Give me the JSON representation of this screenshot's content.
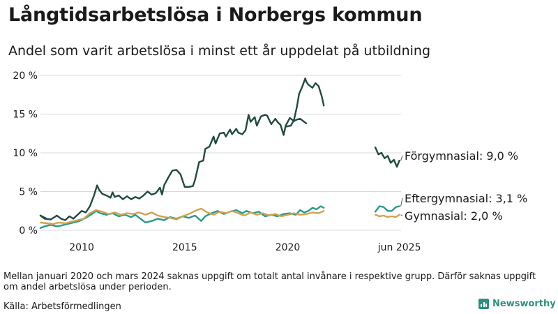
{
  "header": {
    "title": "Långtidsarbetslösa i Norbergs kommun",
    "subtitle": "Andel som varit arbetslösa i minst ett år uppdelat på utbildning"
  },
  "footer": {
    "note": "Mellan januari 2020 och mars 2024 saknas uppgift om totalt antal invånare i respektive grupp. Därför saknas uppgift om andel arbetslösa under perioden.",
    "source": "Källa: Arbetsförmedlingen",
    "brand": "Newsworthy"
  },
  "colors": {
    "forgymnasial": "#1f4a40",
    "eftergymnasial": "#2a9a8a",
    "gymnasial": "#d4a24c",
    "grid": "#d9d9d9"
  },
  "chart_data": {
    "type": "line",
    "title": "Långtidsarbetslösa i Norbergs kommun",
    "subtitle": "Andel som varit arbetslösa i minst ett år uppdelat på utbildning",
    "x_unit": "year",
    "xlim": [
      2008,
      2025.5
    ],
    "ylim": [
      0,
      20
    ],
    "grid": true,
    "x_ticks": [
      {
        "value": 2010,
        "label": "2010"
      },
      {
        "value": 2015,
        "label": "2015"
      },
      {
        "value": 2020,
        "label": "2020"
      },
      {
        "value": 2025.42,
        "label": "jun 2025"
      }
    ],
    "y_ticks": [
      {
        "value": 0,
        "label": "0 %"
      },
      {
        "value": 5,
        "label": "5 %"
      },
      {
        "value": 10,
        "label": "10 %"
      },
      {
        "value": 15,
        "label": "15 %"
      },
      {
        "value": 20,
        "label": "20 %"
      }
    ],
    "series": [
      {
        "name": "Förgymnasial",
        "label": "Förgymnasial: 9,0 %",
        "color": "#1f4a40",
        "segments": [
          [
            [
              2008.0,
              1.9
            ],
            [
              2008.2,
              1.5
            ],
            [
              2008.5,
              1.4
            ],
            [
              2008.8,
              1.9
            ],
            [
              2009.0,
              1.5
            ],
            [
              2009.2,
              1.3
            ],
            [
              2009.4,
              1.8
            ],
            [
              2009.6,
              1.5
            ],
            [
              2009.8,
              2.0
            ],
            [
              2010.0,
              2.5
            ],
            [
              2010.2,
              2.3
            ],
            [
              2010.4,
              3.1
            ],
            [
              2010.6,
              4.5
            ],
            [
              2010.75,
              5.8
            ],
            [
              2010.85,
              5.2
            ],
            [
              2011.0,
              4.7
            ],
            [
              2011.2,
              4.5
            ],
            [
              2011.4,
              4.2
            ],
            [
              2011.5,
              4.9
            ],
            [
              2011.6,
              4.3
            ],
            [
              2011.8,
              4.5
            ],
            [
              2012.0,
              4.0
            ],
            [
              2012.2,
              4.4
            ],
            [
              2012.4,
              4.0
            ],
            [
              2012.6,
              4.3
            ],
            [
              2012.8,
              4.1
            ],
            [
              2013.0,
              4.5
            ],
            [
              2013.2,
              5.0
            ],
            [
              2013.4,
              4.6
            ],
            [
              2013.6,
              4.8
            ],
            [
              2013.8,
              5.5
            ],
            [
              2013.9,
              4.6
            ],
            [
              2014.0,
              5.8
            ],
            [
              2014.2,
              6.8
            ],
            [
              2014.4,
              7.7
            ],
            [
              2014.6,
              7.8
            ],
            [
              2014.8,
              7.2
            ],
            [
              2014.9,
              6.4
            ],
            [
              2015.0,
              5.6
            ],
            [
              2015.2,
              5.6
            ],
            [
              2015.4,
              5.7
            ],
            [
              2015.5,
              6.5
            ],
            [
              2015.7,
              8.8
            ],
            [
              2015.9,
              9.0
            ],
            [
              2016.0,
              10.5
            ],
            [
              2016.2,
              10.8
            ],
            [
              2016.4,
              12.1
            ],
            [
              2016.5,
              11.2
            ],
            [
              2016.7,
              12.5
            ],
            [
              2016.9,
              12.6
            ],
            [
              2017.0,
              12.1
            ],
            [
              2017.2,
              13.0
            ],
            [
              2017.3,
              12.4
            ],
            [
              2017.5,
              13.1
            ],
            [
              2017.6,
              12.6
            ],
            [
              2017.8,
              12.4
            ],
            [
              2017.95,
              12.9
            ],
            [
              2018.1,
              14.9
            ],
            [
              2018.2,
              14.0
            ],
            [
              2018.4,
              14.6
            ],
            [
              2018.5,
              13.5
            ],
            [
              2018.7,
              14.7
            ],
            [
              2018.9,
              14.9
            ],
            [
              2019.0,
              14.8
            ],
            [
              2019.2,
              13.7
            ],
            [
              2019.4,
              14.4
            ],
            [
              2019.5,
              14.0
            ],
            [
              2019.65,
              13.6
            ],
            [
              2019.8,
              12.3
            ],
            [
              2019.9,
              13.5
            ],
            [
              2020.1,
              14.5
            ],
            [
              2020.3,
              14.1
            ],
            [
              2020.45,
              14.3
            ],
            [
              2020.6,
              14.4
            ],
            [
              2020.75,
              14.1
            ],
            [
              2020.9,
              13.8
            ]
          ],
          [
            [
              2008.0,
              1.9
            ],
            [
              2008.3,
              1.5
            ]
          ],
          [
            [
              2019.95,
              13.4
            ],
            [
              2020.15,
              13.5
            ],
            [
              2020.3,
              14.2
            ],
            [
              2020.45,
              16.0
            ],
            [
              2020.55,
              17.6
            ],
            [
              2020.7,
              18.5
            ],
            [
              2020.85,
              19.6
            ],
            [
              2020.9,
              19.2
            ],
            [
              2021.0,
              18.8
            ],
            [
              2021.2,
              18.4
            ],
            [
              2021.35,
              19.0
            ],
            [
              2021.5,
              18.6
            ],
            [
              2021.65,
              17.3
            ],
            [
              2021.75,
              16.1
            ]
          ]
        ],
        "tail": [
          [
            2024.25,
            10.7
          ],
          [
            2024.4,
            9.8
          ],
          [
            2024.55,
            10.0
          ],
          [
            2024.7,
            9.3
          ],
          [
            2024.85,
            9.6
          ],
          [
            2025.0,
            8.7
          ],
          [
            2025.15,
            9.1
          ],
          [
            2025.3,
            8.2
          ],
          [
            2025.42,
            9.0
          ]
        ]
      },
      {
        "name": "Eftergymnasial",
        "label": "Eftergymnasial: 3,1 %",
        "color": "#2a9a8a",
        "segments": [
          [
            [
              2008.0,
              0.3
            ],
            [
              2008.2,
              0.5
            ],
            [
              2008.5,
              0.7
            ],
            [
              2008.8,
              0.5
            ],
            [
              2009.0,
              0.6
            ],
            [
              2009.3,
              0.8
            ],
            [
              2009.6,
              1.0
            ],
            [
              2009.9,
              1.2
            ],
            [
              2010.2,
              1.6
            ],
            [
              2010.5,
              2.1
            ],
            [
              2010.7,
              2.5
            ],
            [
              2010.9,
              2.2
            ],
            [
              2011.2,
              2.0
            ],
            [
              2011.5,
              2.2
            ],
            [
              2011.8,
              1.8
            ],
            [
              2012.1,
              2.0
            ],
            [
              2012.4,
              1.7
            ],
            [
              2012.6,
              2.0
            ],
            [
              2012.9,
              1.4
            ],
            [
              2013.1,
              1.0
            ],
            [
              2013.4,
              1.2
            ],
            [
              2013.7,
              1.5
            ],
            [
              2014.0,
              1.3
            ],
            [
              2014.3,
              1.7
            ],
            [
              2014.6,
              1.5
            ],
            [
              2014.9,
              1.8
            ],
            [
              2015.2,
              1.6
            ],
            [
              2015.5,
              1.9
            ],
            [
              2015.8,
              1.2
            ],
            [
              2016.0,
              1.8
            ],
            [
              2016.3,
              2.2
            ],
            [
              2016.6,
              2.5
            ],
            [
              2016.9,
              2.1
            ],
            [
              2017.2,
              2.4
            ],
            [
              2017.5,
              2.6
            ],
            [
              2017.8,
              2.2
            ],
            [
              2018.0,
              2.5
            ],
            [
              2018.3,
              2.2
            ],
            [
              2018.6,
              2.4
            ],
            [
              2018.9,
              1.8
            ],
            [
              2019.2,
              2.0
            ],
            [
              2019.5,
              1.8
            ],
            [
              2019.8,
              2.1
            ],
            [
              2020.1,
              2.2
            ],
            [
              2020.4,
              2.0
            ],
            [
              2020.6,
              2.6
            ],
            [
              2020.8,
              2.3
            ],
            [
              2021.0,
              2.5
            ],
            [
              2021.2,
              2.9
            ],
            [
              2021.4,
              2.7
            ],
            [
              2021.6,
              3.1
            ],
            [
              2021.75,
              2.9
            ]
          ]
        ],
        "tail": [
          [
            2024.25,
            2.4
          ],
          [
            2024.45,
            3.1
          ],
          [
            2024.65,
            3.0
          ],
          [
            2024.85,
            2.5
          ],
          [
            2025.05,
            2.5
          ],
          [
            2025.25,
            3.0
          ],
          [
            2025.42,
            3.1
          ]
        ]
      },
      {
        "name": "Gymnasial",
        "label": "Gymnasial: 2,0 %",
        "color": "#d4a24c",
        "segments": [
          [
            [
              2008.0,
              1.0
            ],
            [
              2008.3,
              0.9
            ],
            [
              2008.6,
              0.8
            ],
            [
              2008.9,
              1.0
            ],
            [
              2009.2,
              0.9
            ],
            [
              2009.5,
              1.1
            ],
            [
              2009.8,
              1.3
            ],
            [
              2010.1,
              1.5
            ],
            [
              2010.4,
              2.2
            ],
            [
              2010.7,
              2.6
            ],
            [
              2011.0,
              2.4
            ],
            [
              2011.3,
              2.1
            ],
            [
              2011.6,
              2.3
            ],
            [
              2011.9,
              2.0
            ],
            [
              2012.2,
              2.2
            ],
            [
              2012.5,
              2.1
            ],
            [
              2012.8,
              2.3
            ],
            [
              2013.1,
              2.0
            ],
            [
              2013.4,
              2.3
            ],
            [
              2013.7,
              1.9
            ],
            [
              2014.0,
              1.7
            ],
            [
              2014.3,
              1.6
            ],
            [
              2014.6,
              1.4
            ],
            [
              2014.9,
              1.8
            ],
            [
              2015.2,
              2.1
            ],
            [
              2015.5,
              2.5
            ],
            [
              2015.8,
              2.8
            ],
            [
              2016.1,
              2.3
            ],
            [
              2016.4,
              2.0
            ],
            [
              2016.7,
              2.4
            ],
            [
              2017.0,
              2.2
            ],
            [
              2017.3,
              2.5
            ],
            [
              2017.6,
              2.2
            ],
            [
              2017.9,
              1.9
            ],
            [
              2018.2,
              2.3
            ],
            [
              2018.5,
              2.0
            ],
            [
              2018.8,
              2.2
            ],
            [
              2019.1,
              1.9
            ],
            [
              2019.4,
              2.1
            ],
            [
              2019.7,
              1.8
            ],
            [
              2020.0,
              2.0
            ],
            [
              2020.3,
              2.2
            ],
            [
              2020.6,
              2.0
            ],
            [
              2020.9,
              2.1
            ],
            [
              2021.2,
              2.3
            ],
            [
              2021.5,
              2.2
            ],
            [
              2021.75,
              2.5
            ]
          ]
        ],
        "tail": [
          [
            2024.25,
            2.0
          ],
          [
            2024.45,
            1.8
          ],
          [
            2024.65,
            1.9
          ],
          [
            2024.85,
            1.7
          ],
          [
            2025.05,
            1.8
          ],
          [
            2025.25,
            1.7
          ],
          [
            2025.42,
            2.0
          ]
        ]
      }
    ]
  }
}
